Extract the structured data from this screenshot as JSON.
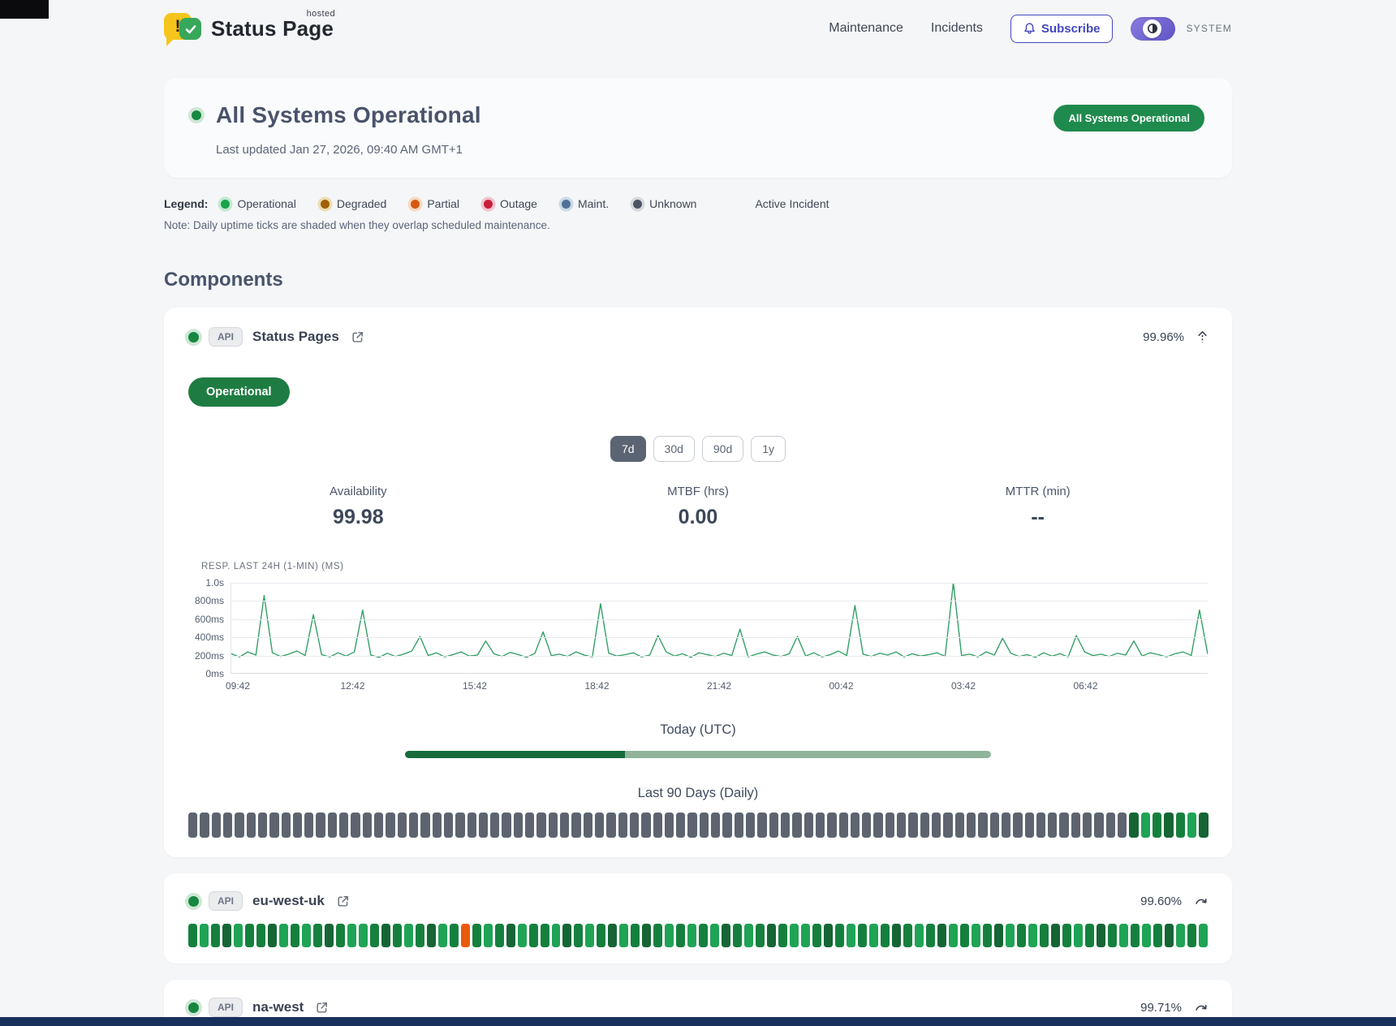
{
  "header": {
    "brand": "Status Page",
    "brand_superscript": "hosted",
    "nav_maintenance": "Maintenance",
    "nav_incidents": "Incidents",
    "subscribe_label": "Subscribe",
    "theme_label": "SYSTEM"
  },
  "hero": {
    "title": "All Systems Operational",
    "last_updated": "Last updated Jan 27, 2026, 09:40 AM GMT+1",
    "badge": "All Systems Operational"
  },
  "legend": {
    "label": "Legend:",
    "items": [
      {
        "label": "Operational",
        "color": "#16a34a",
        "ring": "#c4e8d0"
      },
      {
        "label": "Degraded",
        "color": "#a16207",
        "ring": "#ecddb2"
      },
      {
        "label": "Partial",
        "color": "#d45a10",
        "ring": "#f6d9c2"
      },
      {
        "label": "Outage",
        "color": "#c81e3c",
        "ring": "#f3c3cd"
      },
      {
        "label": "Maint.",
        "color": "#4f7396",
        "ring": "#ccdae6"
      },
      {
        "label": "Unknown",
        "color": "#4b5563",
        "ring": "#d6d9de"
      }
    ],
    "active_incident_label": "Active Incident",
    "note": "Note: Daily uptime ticks are shaded when they overlap scheduled maintenance."
  },
  "components": {
    "heading": "Components"
  },
  "component_main": {
    "tag": "API",
    "name": "Status Pages",
    "uptime": "99.96%",
    "status_badge": "Operational",
    "ranges": [
      {
        "label": "7d",
        "active": true
      },
      {
        "label": "30d",
        "active": false
      },
      {
        "label": "90d",
        "active": false
      },
      {
        "label": "1y",
        "active": false
      }
    ],
    "stats": [
      {
        "label": "Availability",
        "value": "99.98"
      },
      {
        "label": "MTBF (hrs)",
        "value": "0.00"
      },
      {
        "label": "MTTR (min)",
        "value": "--"
      }
    ],
    "today_label": "Today (UTC)",
    "today_progress_pct": 37.5,
    "last90_label": "Last 90 Days (Daily)",
    "ticks90": "gggggggggggggggggggggggggggggggggggggggggggggggggggggggggggggggggggggggggggggggggcbacabc"
  },
  "component_rows": [
    {
      "tag": "API",
      "name": "eu-west-uk",
      "uptime": "99.60%",
      "ticks90": "abacbaacbabacabbacabacbaoabacbaabcabacbacabababcabacabbacababacabacbabacbabacabacababacbab"
    },
    {
      "tag": "API",
      "name": "na-west",
      "uptime": "99.71%",
      "ticks90": "bacababcabacbabacbaababcabacabrabacbabacabacabbacabacbabacabacababacbabacabacbababacbabaca"
    }
  ],
  "chart_data": {
    "type": "line",
    "title": "RESP. LAST 24H (1-MIN) (MS)",
    "x_tick_labels": [
      "09:42",
      "12:42",
      "15:42",
      "18:42",
      "21:42",
      "00:42",
      "03:42",
      "06:42"
    ],
    "y_tick_labels": [
      "1.0s",
      "800ms",
      "600ms",
      "400ms",
      "200ms",
      "0ms"
    ],
    "ylim": [
      0,
      1000
    ],
    "unit": "ms",
    "grid": true,
    "legend_position": "none",
    "line_color": "#2f9e63",
    "series": [
      {
        "name": "response-time-ms",
        "values": [
          220,
          185,
          240,
          205,
          860,
          230,
          190,
          215,
          250,
          200,
          650,
          210,
          185,
          230,
          195,
          240,
          700,
          205,
          180,
          225,
          190,
          215,
          250,
          410,
          200,
          230,
          185,
          210,
          240,
          195,
          205,
          360,
          220,
          190,
          235,
          210,
          180,
          225,
          460,
          200,
          215,
          190,
          240,
          205,
          185,
          770,
          225,
          195,
          210,
          230,
          185,
          205,
          420,
          240,
          195,
          220,
          180,
          230,
          210,
          190,
          225,
          200,
          490,
          185,
          215,
          240,
          205,
          190,
          220,
          410,
          195,
          230,
          185,
          210,
          250,
          200,
          750,
          215,
          190,
          225,
          205,
          240,
          185,
          220,
          195,
          210,
          230,
          190,
          1000,
          200,
          215,
          185,
          240,
          205,
          390,
          225,
          190,
          210,
          180,
          230,
          195,
          220,
          185,
          420,
          240,
          200,
          215,
          190,
          225,
          205,
          360,
          195,
          230,
          210,
          185,
          220,
          240,
          200,
          700,
          215
        ]
      }
    ]
  },
  "colors": {
    "tick_palette": {
      "g": "#5d6470",
      "a": "#15803d",
      "b": "#1fa355",
      "c": "#166534",
      "o": "#ea580c",
      "r": "#dc2626"
    },
    "progress_dark": "#176b3c",
    "progress_light": "#8fb49a"
  }
}
